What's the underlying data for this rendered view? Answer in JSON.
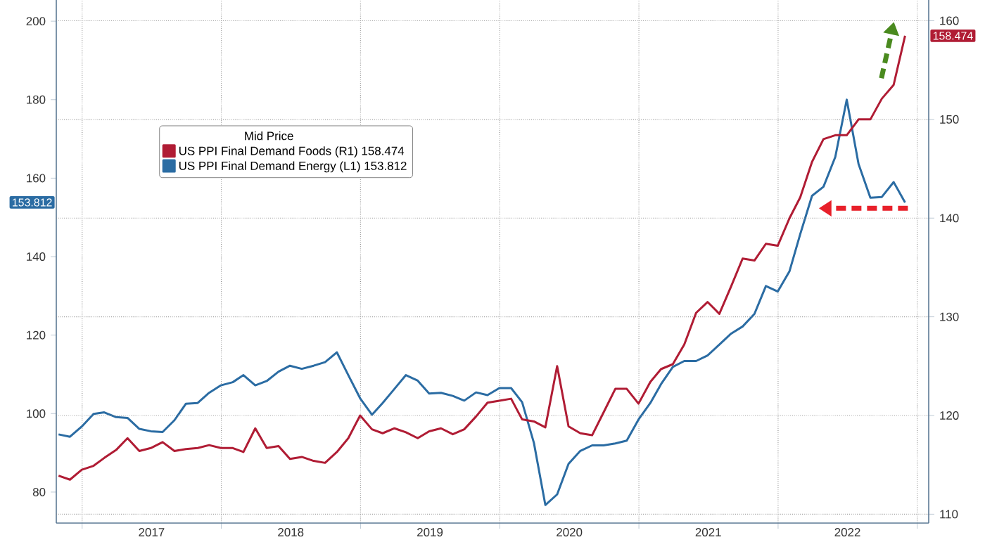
{
  "chart_data": {
    "type": "line",
    "legend_title": "Mid Price",
    "legend": "top left",
    "grid": true,
    "marker": "none",
    "line_style": "solid",
    "x": [
      "2016-10-31",
      "2016-11-30",
      "2016-12-31",
      "2017-01-31",
      "2017-02-28",
      "2017-03-31",
      "2017-04-30",
      "2017-05-31",
      "2017-06-30",
      "2017-07-31",
      "2017-08-31",
      "2017-09-30",
      "2017-10-31",
      "2017-11-30",
      "2017-12-31",
      "2018-01-31",
      "2018-02-28",
      "2018-03-31",
      "2018-04-30",
      "2018-05-31",
      "2018-06-30",
      "2018-07-31",
      "2018-08-31",
      "2018-09-30",
      "2018-10-31",
      "2018-11-30",
      "2018-12-31",
      "2019-01-31",
      "2019-02-28",
      "2019-03-31",
      "2019-04-30",
      "2019-05-31",
      "2019-06-30",
      "2019-07-31",
      "2019-08-31",
      "2019-09-30",
      "2019-10-31",
      "2019-11-30",
      "2019-12-31",
      "2020-01-31",
      "2020-02-29",
      "2020-03-31",
      "2020-04-30",
      "2020-05-31",
      "2020-06-30",
      "2020-07-31",
      "2020-08-31",
      "2020-09-30",
      "2020-10-31",
      "2020-11-30",
      "2020-12-31",
      "2021-01-31",
      "2021-02-28",
      "2021-03-31",
      "2021-04-30",
      "2021-05-31",
      "2021-06-30",
      "2021-07-31",
      "2021-08-31",
      "2021-09-30",
      "2021-10-31",
      "2021-11-30",
      "2021-12-31",
      "2022-01-31",
      "2022-02-28",
      "2022-03-31",
      "2022-04-30",
      "2022-05-31",
      "2022-06-30",
      "2022-07-31",
      "2022-08-31",
      "2022-09-30",
      "2022-10-31",
      "2022-11-30"
    ],
    "annotations": [
      "158.474",
      "153.812"
    ],
    "series": [
      {
        "name": "US PPI Final Demand Foods (R1) 158.474",
        "color": "#b01c34",
        "axis": "y2",
        "values": [
          113.9,
          113.5,
          114.5,
          114.9,
          115.7,
          116.5,
          117.7,
          116.4,
          116.7,
          117.3,
          116.4,
          116.6,
          116.7,
          117.0,
          116.7,
          116.7,
          116.3,
          118.7,
          116.7,
          116.9,
          115.6,
          115.8,
          115.4,
          115.2,
          116.3,
          117.7,
          120.0,
          118.6,
          118.2,
          118.7,
          118.3,
          117.7,
          118.4,
          118.7,
          118.1,
          118.6,
          119.9,
          121.3,
          121.5,
          121.7,
          119.6,
          119.4,
          118.8,
          125.0,
          118.9,
          118.2,
          118.0,
          120.3,
          122.7,
          122.7,
          121.2,
          123.4,
          124.7,
          125.2,
          127.2,
          130.4,
          131.5,
          130.3,
          133.1,
          135.9,
          135.7,
          137.4,
          137.2,
          140.0,
          142.1,
          145.7,
          148.0,
          148.4,
          148.4,
          150.0,
          150.0,
          152.1,
          153.5,
          158.474
        ]
      },
      {
        "name": "US PPI Final Demand Energy (L1) 153.812",
        "color": "#2b6ca3",
        "values": [
          94.7,
          94.1,
          96.7,
          99.9,
          100.3,
          99.1,
          98.9,
          96.1,
          95.5,
          95.3,
          98.3,
          102.5,
          102.7,
          105.3,
          107.2,
          108.0,
          109.8,
          107.2,
          108.3,
          110.7,
          112.2,
          111.4,
          112.2,
          113.1,
          115.6,
          109.8,
          103.9,
          99.7,
          102.7,
          106.3,
          109.8,
          108.4,
          105.1,
          105.3,
          104.5,
          103.3,
          105.4,
          104.7,
          106.5,
          106.5,
          102.9,
          92.5,
          76.7,
          79.4,
          87.2,
          90.5,
          91.9,
          91.9,
          92.4,
          93.1,
          98.5,
          102.7,
          107.5,
          111.9,
          113.4,
          113.4,
          114.8,
          117.6,
          120.4,
          122.2,
          125.4,
          132.5,
          131.1,
          136.3,
          145.7,
          155.5,
          157.8,
          165.4,
          180.0,
          163.6,
          155.0,
          155.2,
          159.0,
          153.812
        ]
      }
    ],
    "xlim": [
      "2016-10-25",
      "2023-01-31"
    ],
    "xticks": [
      {
        "value": "2017-01-01",
        "label": null
      },
      {
        "value": "2017-07-02",
        "label": "2017"
      },
      {
        "value": "2018-01-01",
        "label": null
      },
      {
        "value": "2018-07-02",
        "label": "2018"
      },
      {
        "value": "2019-01-01",
        "label": null
      },
      {
        "value": "2019-07-02",
        "label": "2019"
      },
      {
        "value": "2020-01-01",
        "label": null
      },
      {
        "value": "2020-07-02",
        "label": "2020"
      },
      {
        "value": "2021-01-01",
        "label": null
      },
      {
        "value": "2021-07-02",
        "label": "2021"
      },
      {
        "value": "2022-01-01",
        "label": null
      },
      {
        "value": "2022-07-02",
        "label": "2022"
      },
      {
        "value": "2023-01-01",
        "label": null
      }
    ],
    "ylim": [
      72.1,
      205.4
    ],
    "yticks": [
      80,
      100,
      120,
      140,
      160,
      180,
      200
    ],
    "y2lim": [
      109.1,
      162.1
    ],
    "y2ticks": [
      110,
      120,
      130,
      140,
      150,
      160
    ]
  }
}
